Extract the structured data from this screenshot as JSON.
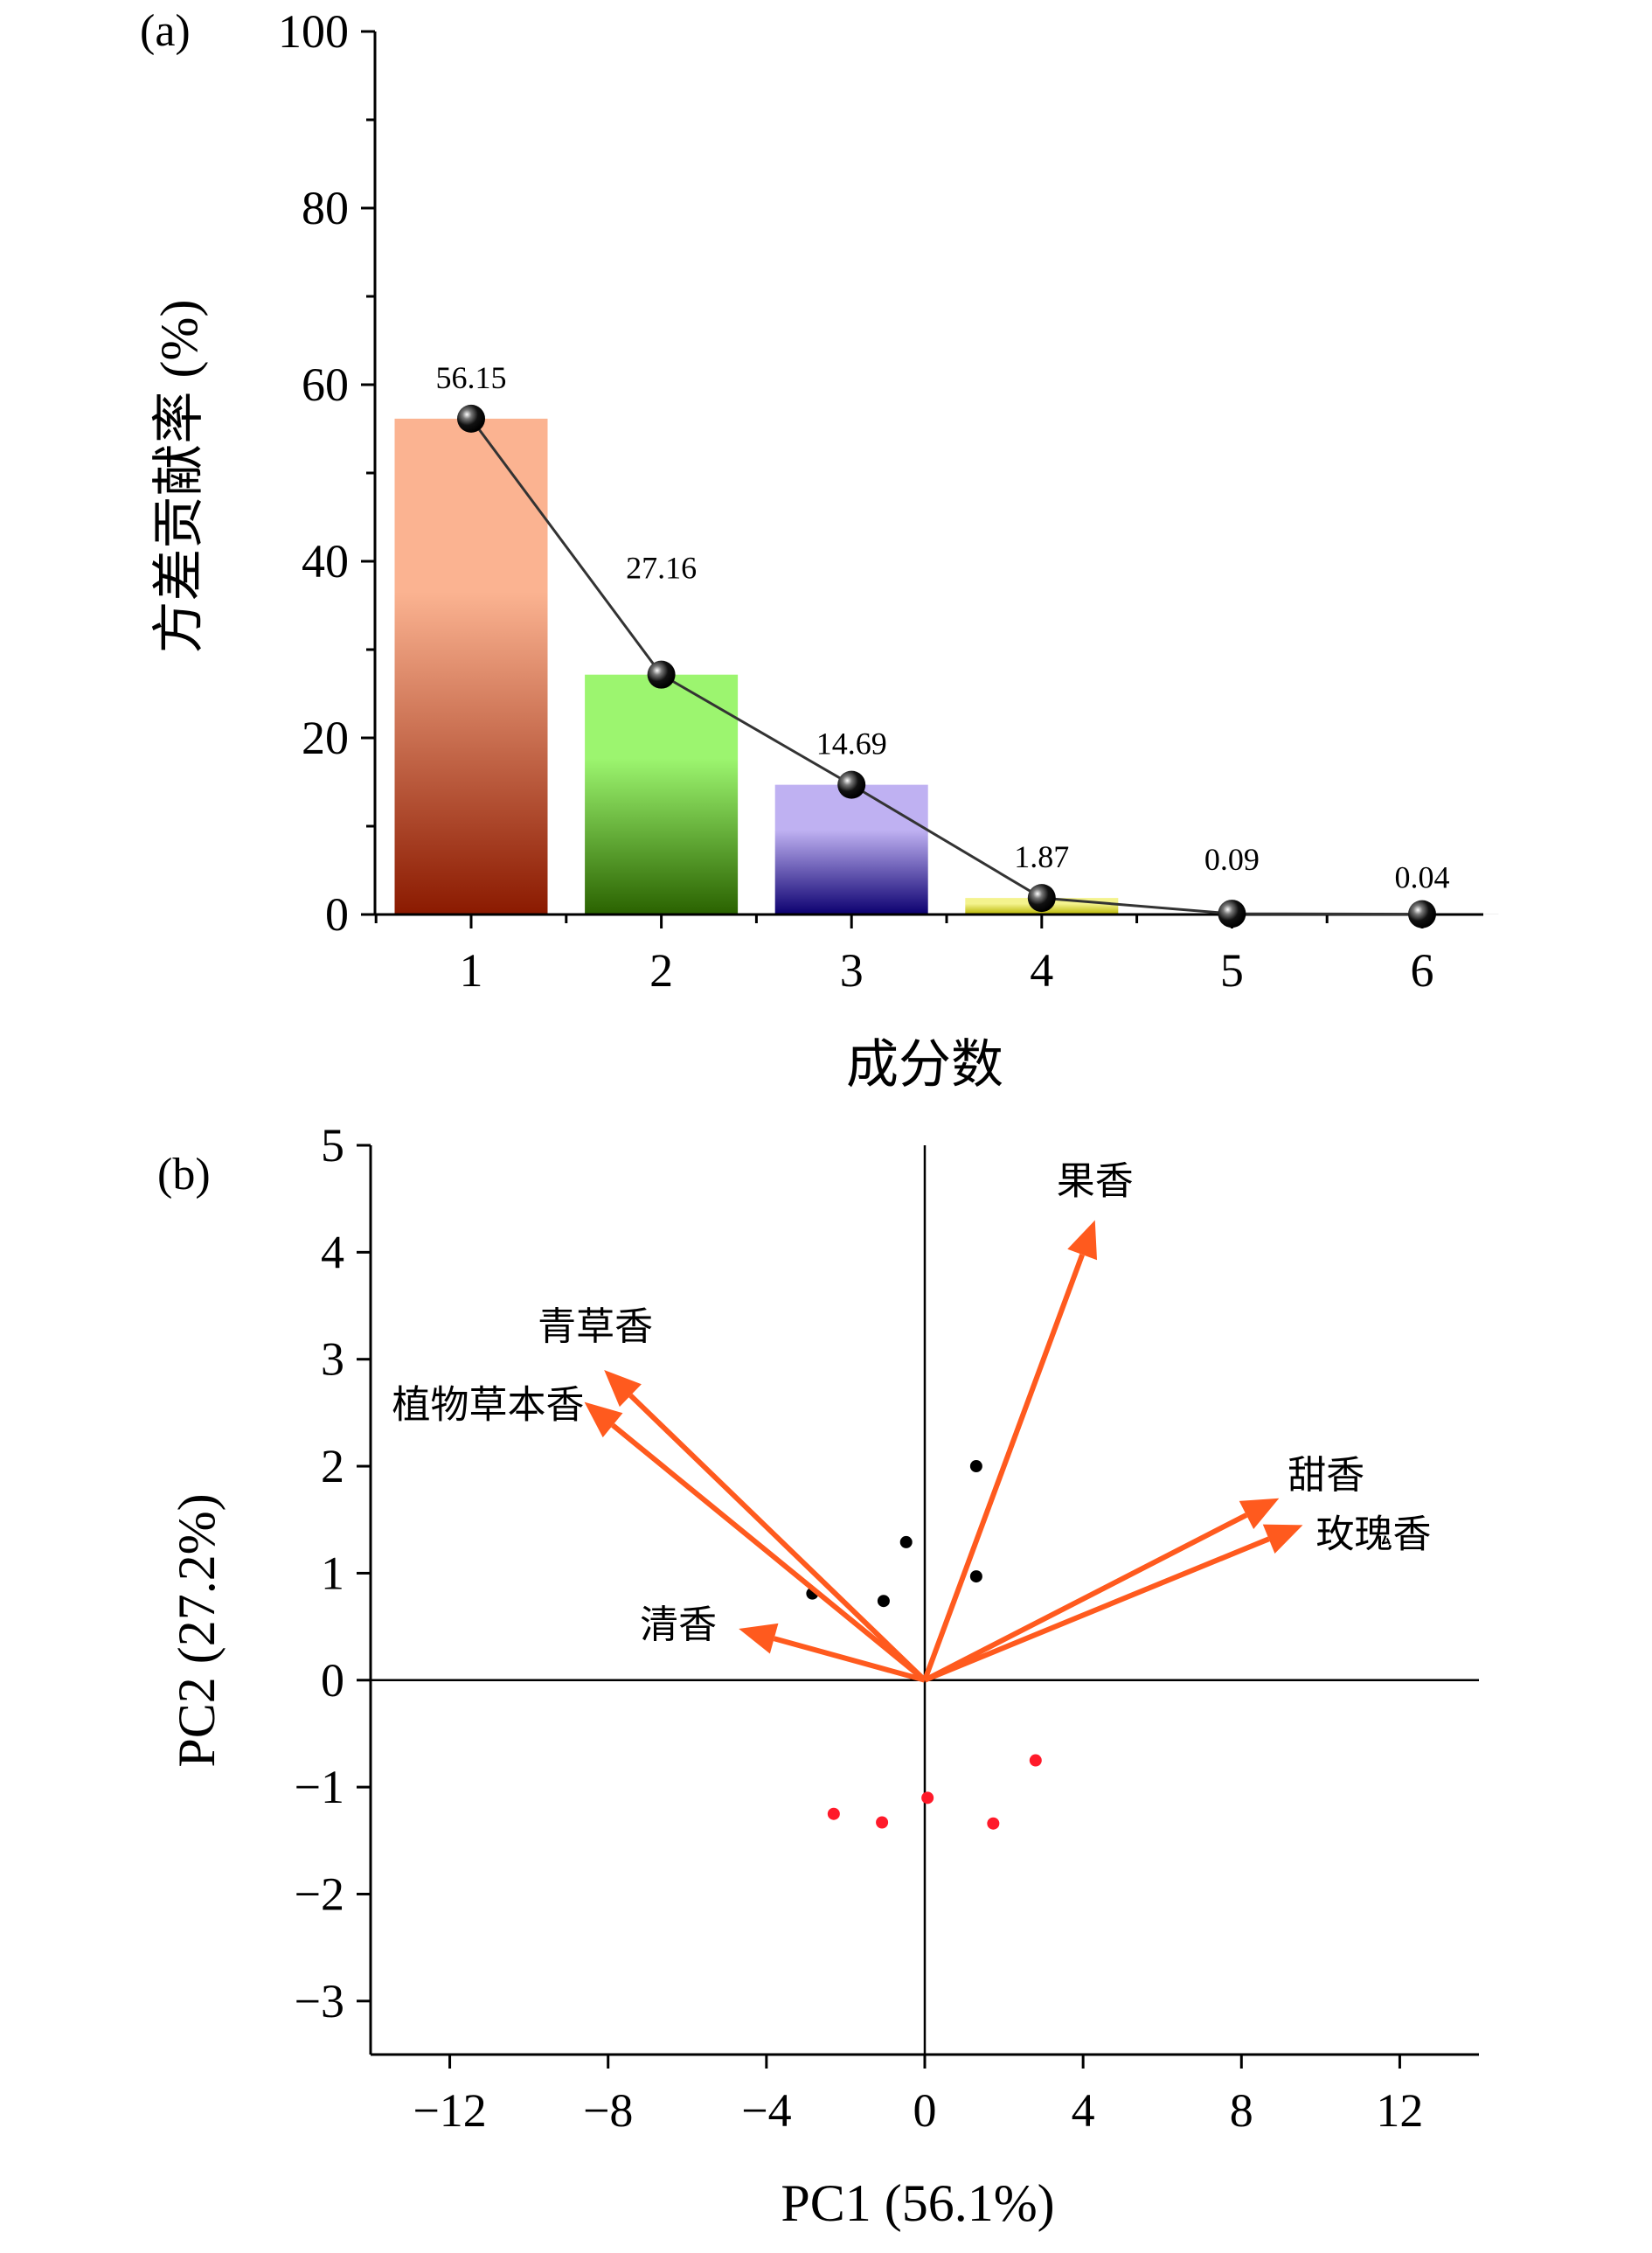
{
  "chart_data": [
    {
      "panel_label": "(a)",
      "type": "bar",
      "categories": [
        "1",
        "2",
        "3",
        "4",
        "5",
        "6"
      ],
      "values": [
        56.15,
        27.16,
        14.69,
        1.87,
        0.09,
        0.04
      ],
      "data_labels": [
        "56.15",
        "27.16",
        "14.69",
        "1.87",
        "0.09",
        "0.04"
      ],
      "overlay": "line with sphere markers through bar values",
      "bar_colors": [
        {
          "top": "#fbb391",
          "bottom": "#8b1a00"
        },
        {
          "top": "#9cf56f",
          "bottom": "#2a6200"
        },
        {
          "top": "#bfb1f2",
          "bottom": "#0c0070"
        },
        {
          "top": "#f4f38e",
          "bottom": "#b9b600"
        },
        {
          "top": "#dddddd",
          "bottom": "#999999"
        },
        {
          "top": "#dddddd",
          "bottom": "#999999"
        }
      ],
      "xlabel": "成分数",
      "ylabel": "方差贡献率 (%)",
      "ylim": [
        0,
        100
      ],
      "yticks": [
        "0",
        "20",
        "40",
        "60",
        "80",
        "100"
      ],
      "grid": false
    },
    {
      "panel_label": "(b)",
      "type": "scatter",
      "xlabel": "PC1 (56.1%)",
      "ylabel": "PC2 (27.2%)",
      "xlim": [
        -14,
        14
      ],
      "ylim": [
        -3.5,
        5
      ],
      "xticks": [
        "−12",
        "−8",
        "−4",
        "0",
        "4",
        "8",
        "12"
      ],
      "xtick_values": [
        -12,
        -8,
        -4,
        0,
        4,
        8,
        12
      ],
      "yticks": [
        "−3",
        "−2",
        "−1",
        "0",
        "1",
        "2",
        "3",
        "4",
        "5"
      ],
      "ytick_values": [
        -3,
        -2,
        -1,
        0,
        1,
        2,
        3,
        4,
        5
      ],
      "grid": false,
      "loadings_color": "#ff5a1e",
      "loadings": [
        {
          "label": "果香",
          "x": 4.3,
          "y": 4.3
        },
        {
          "label": "青草香",
          "x": -8.1,
          "y": 2.9
        },
        {
          "label": "植物草本香",
          "x": -8.6,
          "y": 2.6
        },
        {
          "label": "清香",
          "x": -4.7,
          "y": 0.48
        },
        {
          "label": "甜香",
          "x": 8.95,
          "y": 1.7
        },
        {
          "label": "玫瑰香",
          "x": 9.55,
          "y": 1.45
        }
      ],
      "series": [
        {
          "color": "#000000",
          "points": [
            [
              1.3,
              2.0
            ],
            [
              -0.47,
              1.29
            ],
            [
              -1.04,
              0.74
            ],
            [
              1.3,
              0.97
            ],
            [
              -2.84,
              0.81
            ]
          ]
        },
        {
          "color": "#ff1a2a",
          "points": [
            [
              -2.3,
              -1.25
            ],
            [
              -1.08,
              -1.33
            ],
            [
              0.07,
              -1.1
            ],
            [
              1.73,
              -1.34
            ],
            [
              2.8,
              -0.75
            ]
          ]
        }
      ]
    }
  ]
}
